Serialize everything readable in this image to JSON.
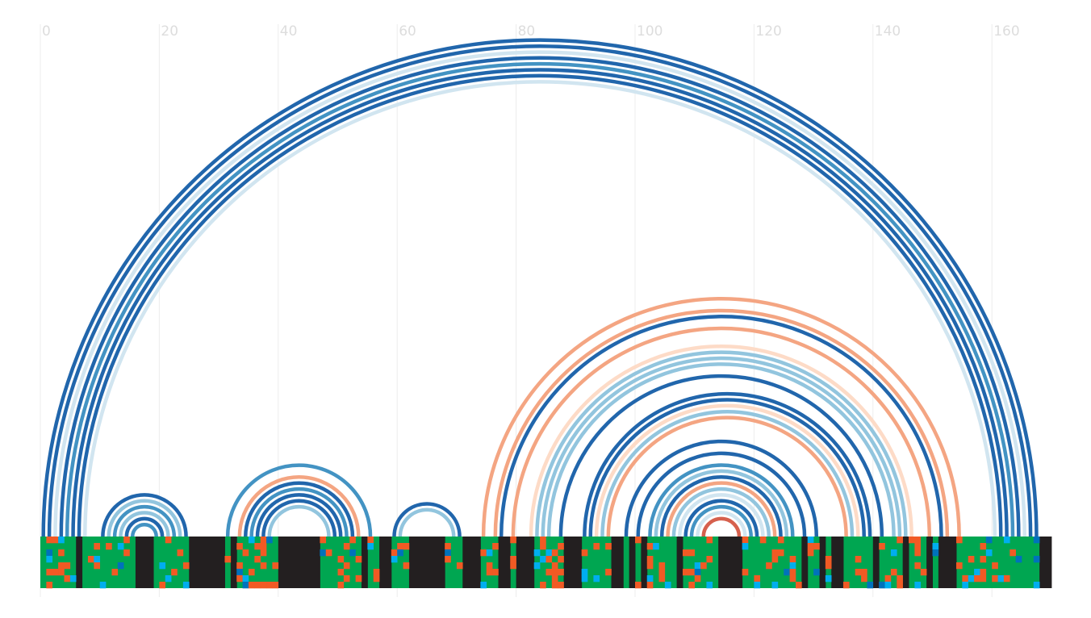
{
  "chart_data": {
    "type": "arc-diagram",
    "title": "",
    "xlabel": "",
    "ylabel": "",
    "xlim": [
      0,
      170
    ],
    "x_ticks": [
      0,
      20,
      40,
      60,
      80,
      100,
      120,
      140,
      160
    ],
    "grid": true,
    "colors": {
      "dark_blue": "#2166ac",
      "mid_blue": "#4393c3",
      "light_blue": "#92c5de",
      "pale_blue": "#d1e5f0",
      "salmon": "#f4a582",
      "pale_salmon": "#fddbc7",
      "red": "#d6604d"
    },
    "arcs": [
      {
        "start": 0,
        "end": 167,
        "color": "dark_blue"
      },
      {
        "start": 1,
        "end": 166,
        "color": "dark_blue"
      },
      {
        "start": 2,
        "end": 165,
        "color": "pale_blue"
      },
      {
        "start": 3,
        "end": 164,
        "color": "dark_blue"
      },
      {
        "start": 4,
        "end": 163,
        "color": "mid_blue"
      },
      {
        "start": 5,
        "end": 162,
        "color": "dark_blue"
      },
      {
        "start": 6,
        "end": 161,
        "color": "dark_blue"
      },
      {
        "start": 7,
        "end": 160,
        "color": "pale_blue"
      },
      {
        "start": 10,
        "end": 24,
        "color": "dark_blue"
      },
      {
        "start": 11,
        "end": 23,
        "color": "light_blue"
      },
      {
        "start": 12,
        "end": 22,
        "color": "mid_blue"
      },
      {
        "start": 13,
        "end": 21,
        "color": "light_blue"
      },
      {
        "start": 14,
        "end": 20,
        "color": "dark_blue"
      },
      {
        "start": 15,
        "end": 19,
        "color": "mid_blue"
      },
      {
        "start": 31,
        "end": 55,
        "color": "mid_blue"
      },
      {
        "start": 33,
        "end": 53,
        "color": "salmon"
      },
      {
        "start": 34,
        "end": 52,
        "color": "dark_blue"
      },
      {
        "start": 35,
        "end": 51,
        "color": "mid_blue"
      },
      {
        "start": 36,
        "end": 50,
        "color": "dark_blue"
      },
      {
        "start": 37,
        "end": 49,
        "color": "dark_blue"
      },
      {
        "start": 38,
        "end": 48,
        "color": "light_blue"
      },
      {
        "start": 59,
        "end": 70,
        "color": "dark_blue"
      },
      {
        "start": 60,
        "end": 69,
        "color": "light_blue"
      },
      {
        "start": 74,
        "end": 154,
        "color": "salmon"
      },
      {
        "start": 76,
        "end": 152,
        "color": "salmon"
      },
      {
        "start": 77,
        "end": 151,
        "color": "dark_blue"
      },
      {
        "start": 79,
        "end": 149,
        "color": "salmon"
      },
      {
        "start": 82,
        "end": 146,
        "color": "pale_salmon"
      },
      {
        "start": 83,
        "end": 145,
        "color": "light_blue"
      },
      {
        "start": 84,
        "end": 144,
        "color": "light_blue"
      },
      {
        "start": 85,
        "end": 143,
        "color": "light_blue"
      },
      {
        "start": 87,
        "end": 141,
        "color": "dark_blue"
      },
      {
        "start": 91,
        "end": 139,
        "color": "dark_blue"
      },
      {
        "start": 92,
        "end": 138,
        "color": "dark_blue"
      },
      {
        "start": 93,
        "end": 137,
        "color": "pale_salmon"
      },
      {
        "start": 94,
        "end": 136,
        "color": "light_blue"
      },
      {
        "start": 95,
        "end": 135,
        "color": "salmon"
      },
      {
        "start": 98,
        "end": 130,
        "color": "dark_blue"
      },
      {
        "start": 100,
        "end": 128,
        "color": "dark_blue"
      },
      {
        "start": 102,
        "end": 126,
        "color": "mid_blue"
      },
      {
        "start": 103,
        "end": 125,
        "color": "light_blue"
      },
      {
        "start": 104,
        "end": 124,
        "color": "dark_blue"
      },
      {
        "start": 105,
        "end": 123,
        "color": "salmon"
      },
      {
        "start": 106,
        "end": 122,
        "color": "light_blue"
      },
      {
        "start": 107,
        "end": 121,
        "color": "pale_blue"
      },
      {
        "start": 108,
        "end": 120,
        "color": "dark_blue"
      },
      {
        "start": 109,
        "end": 119,
        "color": "mid_blue"
      },
      {
        "start": 110,
        "end": 118,
        "color": "pale_blue"
      },
      {
        "start": 111,
        "end": 117,
        "color": "red"
      }
    ],
    "sequence_track": {
      "length": 170,
      "rows": 8,
      "colors": {
        "paired": "#00a651",
        "unpaired": "#231f20",
        "orange": "#f15a24",
        "cyan": "#00aeef",
        "blue": "#0072bc"
      },
      "unpaired_segments": [
        [
          6,
          7
        ],
        [
          16,
          19
        ],
        [
          25,
          31
        ],
        [
          32,
          33
        ],
        [
          40,
          47
        ],
        [
          54,
          55
        ],
        [
          57,
          59
        ],
        [
          62,
          68
        ],
        [
          71,
          74
        ],
        [
          77,
          79
        ],
        [
          80,
          83
        ],
        [
          88,
          91
        ],
        [
          96,
          98
        ],
        [
          99,
          100
        ],
        [
          101,
          102
        ],
        [
          107,
          108
        ],
        [
          114,
          118
        ],
        [
          128,
          129
        ],
        [
          131,
          132
        ],
        [
          133,
          135
        ],
        [
          140,
          141
        ],
        [
          145,
          146
        ],
        [
          149,
          150
        ],
        [
          151,
          154
        ],
        [
          168,
          170
        ]
      ]
    }
  }
}
